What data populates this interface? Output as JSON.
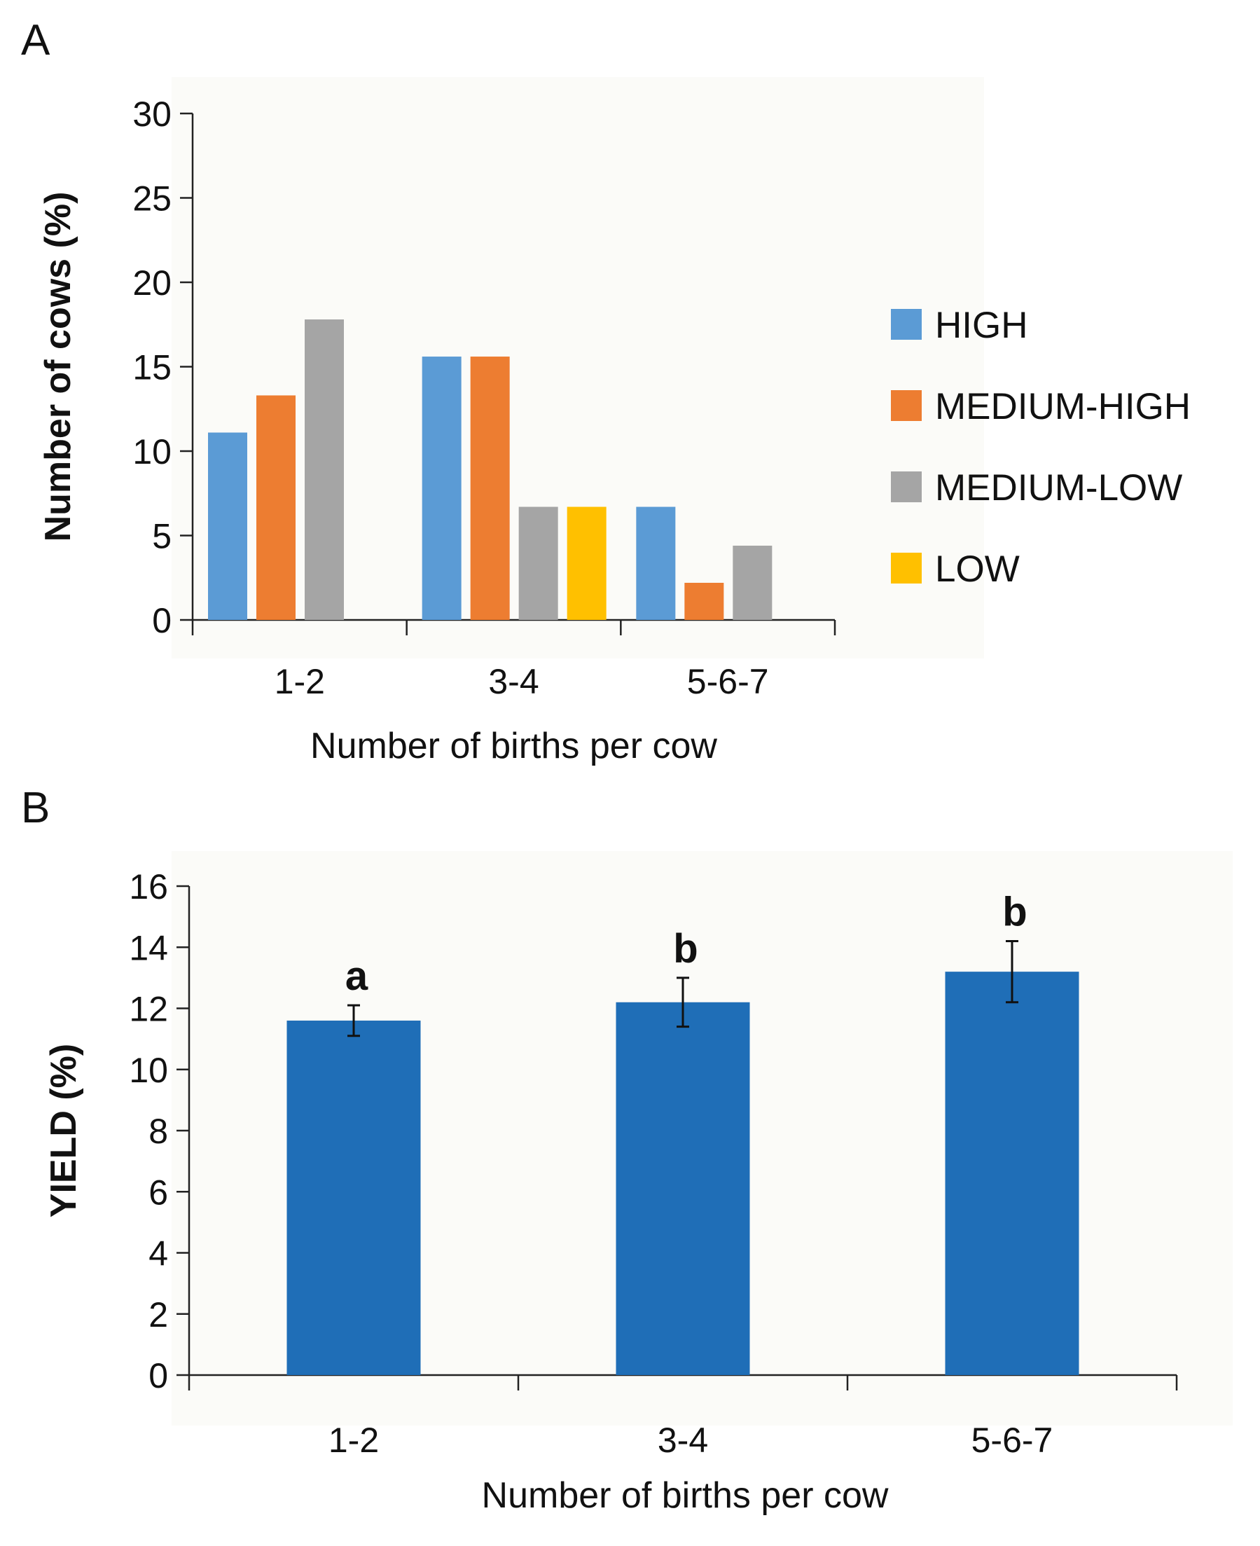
{
  "chart_data": [
    {
      "panel": "A",
      "type": "bar",
      "categories": [
        "1-2",
        "3-4",
        "5-6-7"
      ],
      "series": [
        {
          "name": "HIGH",
          "color": "#5b9bd5",
          "values": [
            11.1,
            15.6,
            6.7
          ]
        },
        {
          "name": "MEDIUM-HIGH",
          "color": "#ed7d31",
          "values": [
            13.3,
            15.6,
            2.2
          ]
        },
        {
          "name": "MEDIUM-LOW",
          "color": "#a5a5a5",
          "values": [
            17.8,
            6.7,
            4.4
          ]
        },
        {
          "name": "LOW",
          "color": "#ffc000",
          "values": [
            0,
            6.7,
            0
          ]
        }
      ],
      "title": "",
      "xlabel": "Number of births per cow",
      "ylabel": "Number of cows (%)",
      "ylim": [
        0,
        30
      ],
      "yticks": [
        "0",
        "5",
        "10",
        "15",
        "20",
        "25",
        "30"
      ],
      "legend": "right"
    },
    {
      "panel": "B",
      "type": "bar",
      "categories": [
        "1-2",
        "3-4",
        "5-6-7"
      ],
      "values": [
        11.6,
        12.2,
        13.2
      ],
      "errors": [
        0.5,
        0.8,
        1.0
      ],
      "annotations": [
        "a",
        "b",
        "b"
      ],
      "color": "#1f6eb7",
      "title": "",
      "xlabel": "Number of births per cow",
      "ylabel": "YIELD (%)",
      "ylim": [
        0,
        16
      ],
      "yticks": [
        "0",
        "2",
        "4",
        "6",
        "8",
        "10",
        "12",
        "14",
        "16"
      ]
    }
  ],
  "panels": {
    "a_label": "A",
    "b_label": "B"
  }
}
